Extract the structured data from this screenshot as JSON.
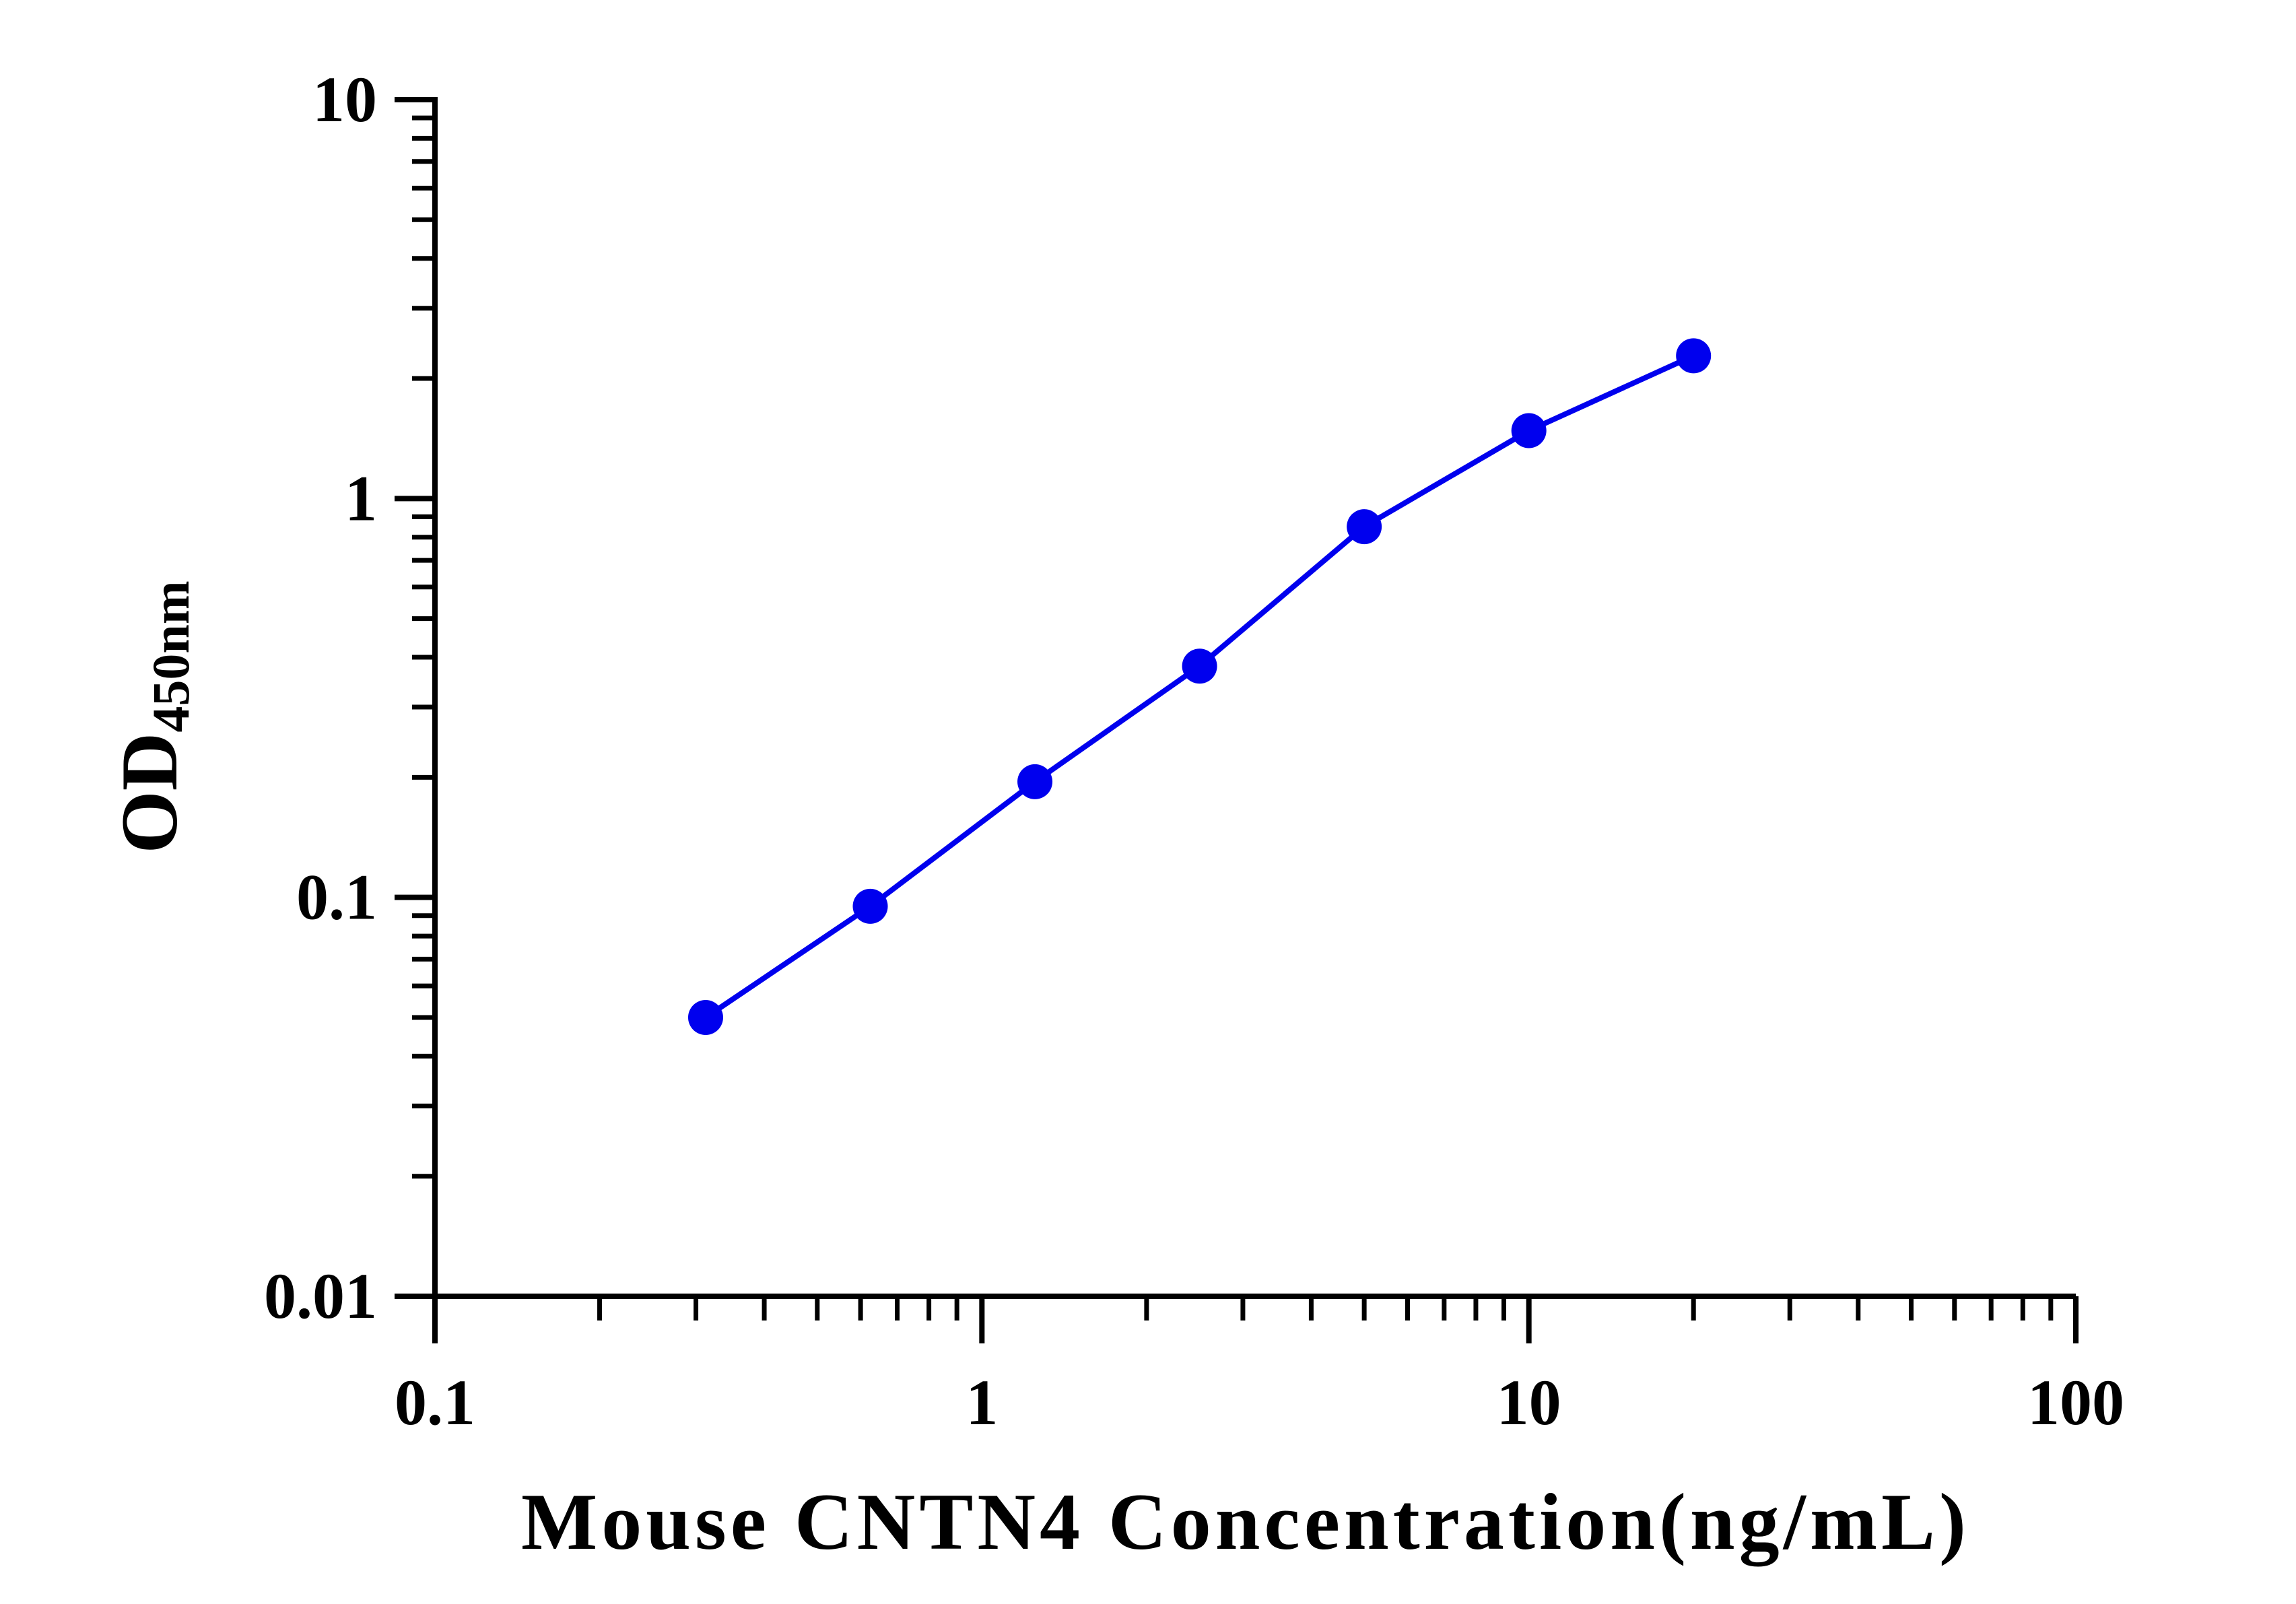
{
  "chart_data": {
    "type": "line",
    "title": "",
    "xlabel": "Mouse CNTN4 Concentration(ng/mL)",
    "ylabel_main": "OD",
    "ylabel_sub": "450nm",
    "x_scale": "log",
    "y_scale": "log",
    "xlim": [
      0.1,
      100
    ],
    "ylim": [
      0.01,
      10
    ],
    "x_ticks": [
      {
        "value": 0.1,
        "label": "0.1"
      },
      {
        "value": 1,
        "label": "1"
      },
      {
        "value": 10,
        "label": "10"
      },
      {
        "value": 100,
        "label": "100"
      }
    ],
    "y_ticks": [
      {
        "value": 0.01,
        "label": "0.01"
      },
      {
        "value": 0.1,
        "label": "0.1"
      },
      {
        "value": 1,
        "label": "1"
      },
      {
        "value": 10,
        "label": "10"
      }
    ],
    "grid": false,
    "legend": "none",
    "series": [
      {
        "color": "#0000ee",
        "x": [
          0.3125,
          0.625,
          1.25,
          2.5,
          5,
          10,
          20
        ],
        "y": [
          0.05,
          0.095,
          0.195,
          0.38,
          0.85,
          1.48,
          2.28
        ]
      }
    ]
  }
}
